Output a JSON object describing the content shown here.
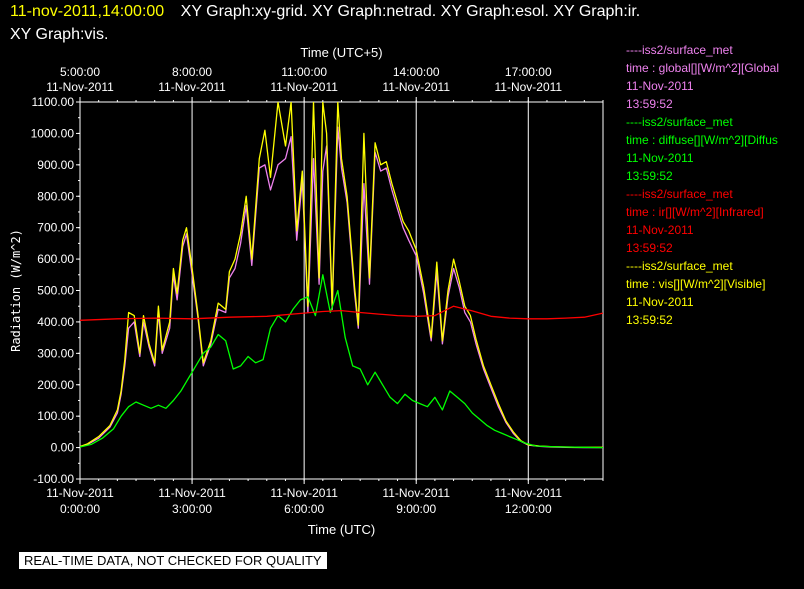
{
  "header": {
    "timestamp": "11-nov-2011,14:00:00",
    "graphs_line1": [
      "XY Graph:xy-grid.",
      "XY Graph:netrad.",
      "XY Graph:esol.",
      "XY Graph:ir."
    ],
    "graphs_line2": "XY Graph:vis."
  },
  "colors": {
    "global": "#ee82ee",
    "diffuse": "#00ff00",
    "ir": "#ff0000",
    "vis": "#ffff00"
  },
  "legend": [
    {
      "source": "----iss2/surface_met",
      "variable": "time : global[][W/m^2][Global",
      "date": "11-Nov-2011",
      "time": "13:59:52",
      "color": "#ee82ee"
    },
    {
      "source": "----iss2/surface_met",
      "variable": "time : diffuse[][W/m^2][Diffus",
      "date": "11-Nov-2011",
      "time": "13:59:52",
      "color": "#00ff00"
    },
    {
      "source": "----iss2/surface_met",
      "variable": "time : ir[][W/m^2][Infrared]",
      "date": "11-Nov-2011",
      "time": "13:59:52",
      "color": "#ff0000"
    },
    {
      "source": "----iss2/surface_met",
      "variable": "time : vis[][W/m^2][Visible]",
      "date": "11-Nov-2011",
      "time": "13:59:52",
      "color": "#ffff00"
    }
  ],
  "disclaimer": "REAL-TIME DATA, NOT CHECKED FOR QUALITY",
  "chart_data": {
    "type": "line",
    "xlabel": "Time (UTC)",
    "x2label": "Time (UTC+5)",
    "ylabel": "Radiation (W/m^2)",
    "xlim": [
      0,
      14
    ],
    "ylim": [
      -100,
      1100
    ],
    "grid": true,
    "legend_position": "right",
    "yticks": [
      -100,
      0,
      100,
      200,
      300,
      400,
      500,
      600,
      700,
      800,
      900,
      1000,
      1100
    ],
    "ytick_labels": [
      "-100.00",
      "0.00",
      "100.00",
      "200.00",
      "300.00",
      "400.00",
      "500.00",
      "600.00",
      "700.00",
      "800.00",
      "900.00",
      "1000.00",
      "1100.00"
    ],
    "xticks": [
      0,
      3,
      6,
      9,
      12
    ],
    "xtick_labels": [
      [
        "11-Nov-2011",
        "0:00:00"
      ],
      [
        "11-Nov-2011",
        "3:00:00"
      ],
      [
        "11-Nov-2011",
        "6:00:00"
      ],
      [
        "11-Nov-2011",
        "9:00:00"
      ],
      [
        "11-Nov-2011",
        "12:00:00"
      ]
    ],
    "x2tick_labels": [
      [
        "5:00:00",
        "11-Nov-2011"
      ],
      [
        "8:00:00",
        "11-Nov-2011"
      ],
      [
        "11:00:00",
        "11-Nov-2011"
      ],
      [
        "14:00:00",
        "11-Nov-2011"
      ],
      [
        "17:00:00",
        "11-Nov-2011"
      ]
    ],
    "series": [
      {
        "name": "global",
        "color": "#ee82ee",
        "x": [
          0,
          0.2,
          0.5,
          0.8,
          1.0,
          1.1,
          1.2,
          1.3,
          1.45,
          1.6,
          1.7,
          1.85,
          2.0,
          2.1,
          2.2,
          2.4,
          2.5,
          2.6,
          2.75,
          2.85,
          3.0,
          3.15,
          3.3,
          3.5,
          3.7,
          3.9,
          4.0,
          4.15,
          4.3,
          4.45,
          4.6,
          4.8,
          4.95,
          5.1,
          5.3,
          5.5,
          5.65,
          5.8,
          5.95,
          6.1,
          6.25,
          6.4,
          6.5,
          6.6,
          6.75,
          6.9,
          7.0,
          7.15,
          7.35,
          7.45,
          7.6,
          7.75,
          7.9,
          8.05,
          8.2,
          8.35,
          8.5,
          8.65,
          8.8,
          9.0,
          9.2,
          9.4,
          9.55,
          9.7,
          9.85,
          10.0,
          10.15,
          10.3,
          10.45,
          10.6,
          10.8,
          11.0,
          11.2,
          11.4,
          11.6,
          11.8,
          12.0,
          12.3,
          12.6,
          13.0,
          13.5,
          14.0
        ],
        "y": [
          3,
          10,
          30,
          65,
          110,
          170,
          260,
          380,
          400,
          290,
          400,
          320,
          260,
          430,
          300,
          380,
          550,
          470,
          640,
          680,
          550,
          420,
          260,
          330,
          440,
          430,
          540,
          570,
          650,
          770,
          580,
          890,
          900,
          820,
          900,
          920,
          990,
          660,
          850,
          430,
          920,
          520,
          880,
          960,
          440,
          1020,
          890,
          780,
          490,
          380,
          840,
          520,
          940,
          880,
          890,
          820,
          760,
          700,
          660,
          610,
          490,
          340,
          560,
          330,
          480,
          570,
          510,
          430,
          400,
          330,
          250,
          190,
          130,
          80,
          45,
          20,
          8,
          4,
          2,
          1,
          0,
          0
        ]
      },
      {
        "name": "vis",
        "color": "#ffff00",
        "x": [
          0,
          0.2,
          0.5,
          0.8,
          1.0,
          1.1,
          1.2,
          1.3,
          1.45,
          1.6,
          1.7,
          1.85,
          2.0,
          2.1,
          2.2,
          2.4,
          2.5,
          2.6,
          2.75,
          2.85,
          3.0,
          3.15,
          3.3,
          3.5,
          3.7,
          3.9,
          4.0,
          4.15,
          4.3,
          4.45,
          4.6,
          4.8,
          4.95,
          5.1,
          5.3,
          5.5,
          5.65,
          5.8,
          5.95,
          6.1,
          6.25,
          6.4,
          6.5,
          6.6,
          6.75,
          6.9,
          7.0,
          7.15,
          7.35,
          7.45,
          7.6,
          7.75,
          7.9,
          8.05,
          8.2,
          8.35,
          8.5,
          8.65,
          8.8,
          9.0,
          9.2,
          9.4,
          9.55,
          9.7,
          9.85,
          10.0,
          10.15,
          10.3,
          10.45,
          10.6,
          10.8,
          11.0,
          11.2,
          11.4,
          11.6,
          11.8,
          12.0,
          12.3,
          12.6,
          13.0,
          13.5,
          14.0
        ],
        "y": [
          3,
          12,
          35,
          70,
          120,
          180,
          280,
          430,
          420,
          300,
          420,
          330,
          270,
          450,
          310,
          400,
          570,
          490,
          660,
          700,
          570,
          430,
          270,
          340,
          460,
          440,
          560,
          600,
          680,
          800,
          600,
          920,
          1010,
          860,
          1100,
          960,
          1100,
          690,
          880,
          450,
          1100,
          540,
          1100,
          1000,
          450,
          1100,
          920,
          800,
          510,
          390,
          1000,
          540,
          970,
          900,
          910,
          840,
          780,
          720,
          690,
          630,
          510,
          350,
          590,
          340,
          500,
          600,
          530,
          450,
          420,
          345,
          260,
          200,
          140,
          85,
          50,
          22,
          9,
          5,
          3,
          2,
          1,
          1
        ]
      },
      {
        "name": "diffuse",
        "color": "#00ff00",
        "x": [
          0,
          0.3,
          0.6,
          0.9,
          1.1,
          1.3,
          1.5,
          1.7,
          1.9,
          2.1,
          2.3,
          2.5,
          2.7,
          2.9,
          3.1,
          3.3,
          3.5,
          3.7,
          3.9,
          4.1,
          4.3,
          4.5,
          4.7,
          4.9,
          5.1,
          5.3,
          5.5,
          5.7,
          5.9,
          6.1,
          6.3,
          6.5,
          6.7,
          6.9,
          7.1,
          7.3,
          7.5,
          7.7,
          7.9,
          8.1,
          8.3,
          8.5,
          8.7,
          8.9,
          9.1,
          9.3,
          9.5,
          9.7,
          9.9,
          10.1,
          10.3,
          10.5,
          10.7,
          10.9,
          11.1,
          11.3,
          11.5,
          11.7,
          11.9,
          12.2,
          12.6,
          13.0,
          13.5,
          14.0
        ],
        "y": [
          2,
          10,
          30,
          60,
          100,
          130,
          145,
          135,
          125,
          135,
          125,
          150,
          180,
          220,
          260,
          300,
          320,
          360,
          340,
          250,
          260,
          290,
          270,
          280,
          380,
          420,
          400,
          440,
          470,
          480,
          420,
          550,
          430,
          500,
          350,
          260,
          250,
          200,
          240,
          200,
          160,
          140,
          170,
          150,
          140,
          130,
          160,
          120,
          180,
          160,
          140,
          110,
          90,
          70,
          55,
          45,
          35,
          25,
          15,
          5,
          3,
          2,
          1,
          0
        ]
      },
      {
        "name": "ir",
        "color": "#ff0000",
        "x": [
          0,
          1,
          2,
          3,
          4,
          5,
          6,
          6.5,
          7,
          7.5,
          8,
          8.5,
          9,
          9.5,
          10,
          10.5,
          11,
          11.5,
          12,
          12.5,
          13,
          13.5,
          14
        ],
        "y": [
          405,
          410,
          412,
          410,
          415,
          418,
          428,
          433,
          436,
          430,
          425,
          420,
          418,
          420,
          450,
          435,
          418,
          412,
          410,
          410,
          412,
          415,
          428
        ]
      }
    ]
  }
}
